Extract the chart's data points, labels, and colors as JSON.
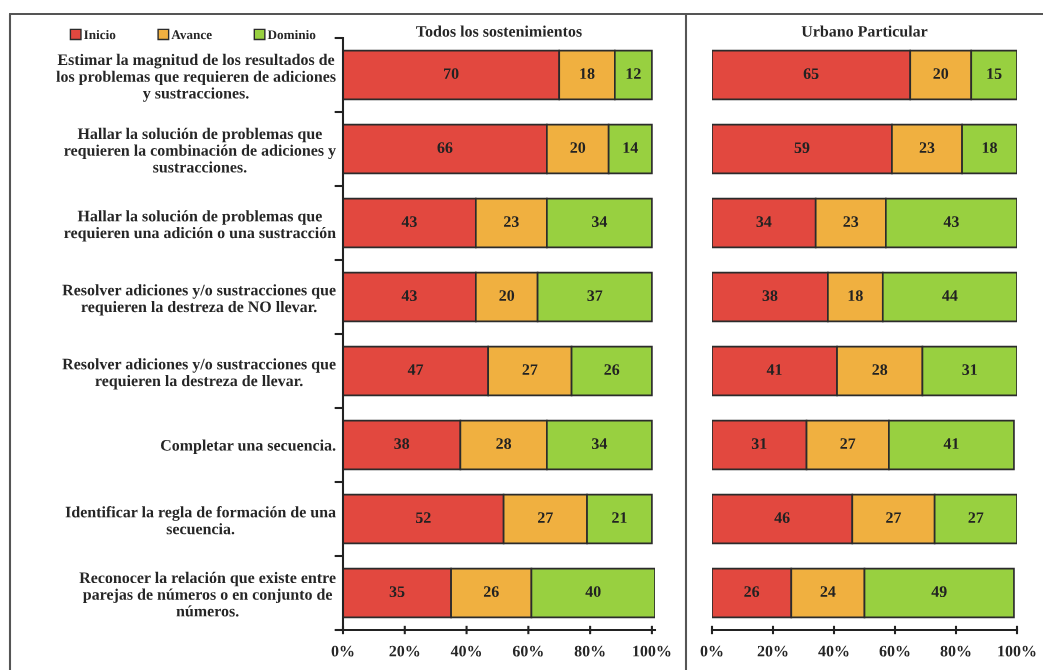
{
  "chart_data": [
    {
      "type": "bar",
      "orientation": "horizontal",
      "stacked": true,
      "title": "Todos los sostenimientos",
      "categories": [
        "Estimar la magnitud de los resultados de los problemas que requieren de adiciones y sustracciones.",
        "Hallar la solución de problemas que requieren la combinación de adiciones y sustracciones.",
        "Hallar la solución de problemas que requieren una adición o una sustracción",
        "Resolver adiciones y/o sustracciones que requieren la destreza de NO llevar.",
        "Resolver adiciones y/o sustracciones que requieren la destreza de llevar.",
        "Completar una secuencia.",
        "Identificar la regla de formación de una secuencia.",
        "Reconocer la relación que existe entre parejas de números o en conjunto de números."
      ],
      "series": [
        {
          "name": "Inicio",
          "color": "#e2483f",
          "values": [
            70,
            66,
            43,
            43,
            47,
            38,
            52,
            35
          ]
        },
        {
          "name": "Avance",
          "color": "#f0b040",
          "values": [
            18,
            20,
            23,
            20,
            27,
            28,
            27,
            26
          ]
        },
        {
          "name": "Dominio",
          "color": "#98d040",
          "values": [
            12,
            14,
            34,
            37,
            26,
            34,
            21,
            40
          ]
        }
      ],
      "xlim": [
        0,
        101
      ],
      "xticks": [
        {
          "value": 0,
          "label": "0%"
        },
        {
          "value": 20,
          "label": "20%"
        },
        {
          "value": 40,
          "label": "40%"
        },
        {
          "value": 60,
          "label": "60%"
        },
        {
          "value": 80,
          "label": "80%"
        },
        {
          "value": 100,
          "label": "100%"
        }
      ],
      "data_labels": true,
      "legend": "top left"
    },
    {
      "type": "bar",
      "orientation": "horizontal",
      "stacked": true,
      "title": "Urbano Particular",
      "categories": [
        null,
        null,
        null,
        null,
        null,
        null,
        null,
        null
      ],
      "series": [
        {
          "color": "#e2483f",
          "values": [
            65,
            59,
            34,
            38,
            41,
            31,
            46,
            26
          ]
        },
        {
          "color": "#f0b040",
          "values": [
            20,
            23,
            23,
            18,
            28,
            27,
            27,
            24
          ]
        },
        {
          "color": "#98d040",
          "values": [
            15,
            18,
            43,
            44,
            31,
            41,
            27,
            49
          ]
        }
      ],
      "xlim": [
        0,
        100
      ],
      "xticks": [
        {
          "value": 0,
          "label": "0%"
        },
        {
          "value": 20,
          "label": "20%"
        },
        {
          "value": 40,
          "label": "40%"
        },
        {
          "value": 60,
          "label": "60%"
        },
        {
          "value": 80,
          "label": "80%"
        },
        {
          "value": 100,
          "label": "100%"
        }
      ],
      "data_labels": true,
      "tick_labels": "x"
    }
  ]
}
